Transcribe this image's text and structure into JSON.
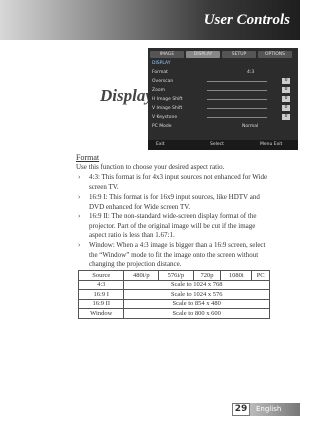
{
  "header": {
    "title": "User Controls"
  },
  "section": {
    "title": "Display"
  },
  "osd": {
    "tabs": [
      "IMAGE",
      "DISPLAY",
      "SETUP",
      "OPTIONS"
    ],
    "title": "DISPLAY",
    "rows": [
      {
        "label": "Format",
        "value": "4:3"
      },
      {
        "label": "Overscan",
        "value": "0"
      },
      {
        "label": "Zoom",
        "value": "0"
      },
      {
        "label": "H Image Shift",
        "value": "0"
      },
      {
        "label": "V Image Shift",
        "value": "0"
      },
      {
        "label": "V Keystone",
        "value": "0"
      },
      {
        "label": "PC Mode",
        "value": "Normal"
      }
    ],
    "footer": [
      "Exit",
      "Select",
      "Menu Exit"
    ]
  },
  "body": {
    "heading": "Format",
    "intro": "Use this function to choose your desired aspect ratio.",
    "bullets": [
      "4:3: This format is for 4x3 input sources not enhanced for Wide screen TV.",
      "16:9 I: This format is for 16x9 input sources, like HDTV and DVD enhanced for Wide screen TV.",
      "16:9 II: The non-standard wide-screen display format of the projector. Part of the original image will be cut if the image aspect ratio is less than 1.67:1.",
      "Window: When a 4:3 image is bigger than a 16:9 screen, select the “Window” mode to fit the image onto the screen without changing the projection distance."
    ]
  },
  "table": {
    "header": [
      "Source",
      "480i/p",
      "576i/p",
      "720p",
      "1080i",
      "PC"
    ],
    "rows": [
      [
        "4:3",
        "Scale to 1024 x 768"
      ],
      [
        "16:9 I",
        "Scale to 1024 x 576"
      ],
      [
        "16:9 II",
        "Scale to  854 x 480"
      ],
      [
        "Window",
        "Scale to  800 x 600"
      ]
    ]
  },
  "footer": {
    "page": "29",
    "language": "English"
  }
}
